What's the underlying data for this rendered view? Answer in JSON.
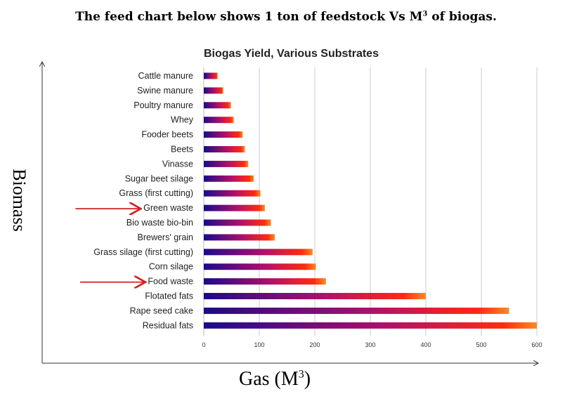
{
  "heading": {
    "text": "The feed chart below shows 1 ton of feedstock Vs M",
    "sup": "3",
    "suffix": " of biogas."
  },
  "chart_data": {
    "type": "bar",
    "orientation": "horizontal",
    "title": "Biogas Yield, Various Substrates",
    "xlabel": "Gas (M",
    "xlabel_sup": "3",
    "xlabel_suffix": ")",
    "ylabel": "Biomass",
    "categories": [
      "Cattle manure",
      "Swine manure",
      "Poultry manure",
      "Whey",
      "Fooder beets",
      "Beets",
      "Vinasse",
      "Sugar beet silage",
      "Grass (first cutting)",
      "Green waste",
      "Bio waste bio-bin",
      "Brewers' grain",
      "Grass silage (first cutting)",
      "Corn silage",
      "Food waste",
      "Flotated fats",
      "Rape seed cake",
      "Residual fats"
    ],
    "values": [
      25,
      35,
      49,
      54,
      70,
      74,
      80,
      90,
      102,
      110,
      121,
      128,
      196,
      202,
      220,
      400,
      550,
      600
    ],
    "xlim": [
      0,
      600
    ],
    "xticks": [
      0,
      100,
      200,
      300,
      400,
      500,
      600
    ],
    "grid": true,
    "highlighted": [
      "Green waste",
      "Food waste"
    ],
    "colors": {
      "bar_start": "#1a0a8a",
      "bar_mid": "#b0106a",
      "bar_end": "#ff2a10",
      "arrow": "#d42020"
    }
  }
}
